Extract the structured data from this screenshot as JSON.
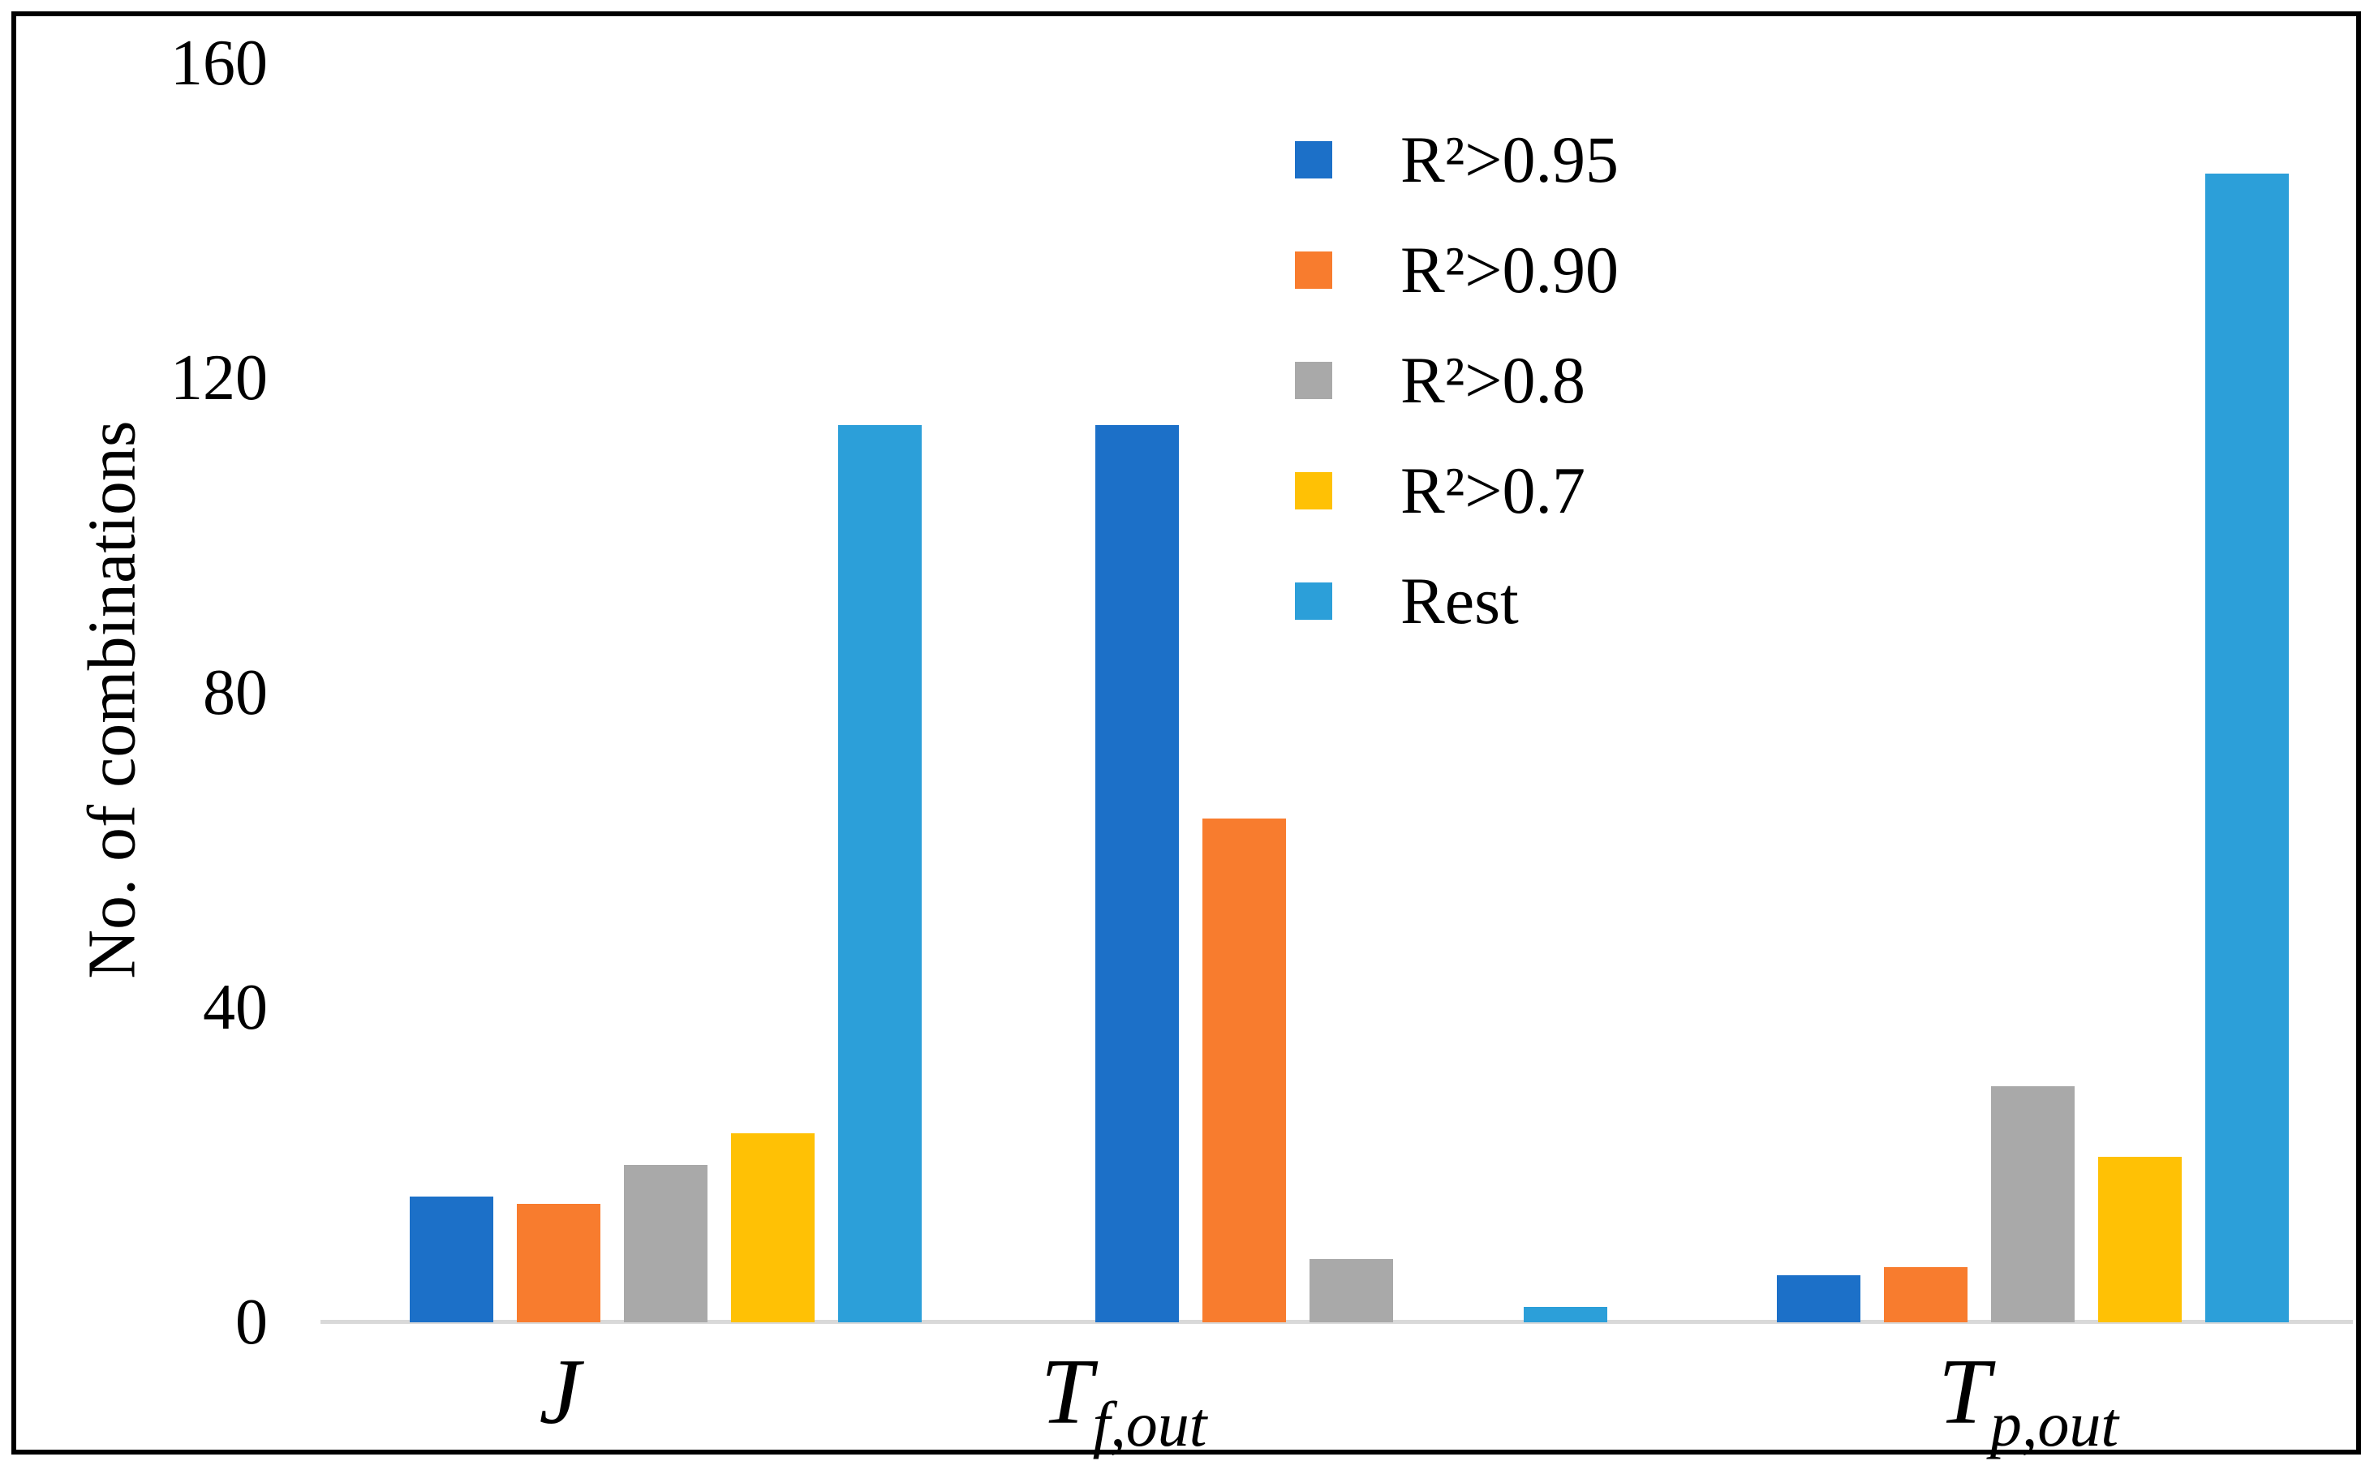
{
  "colors": {
    "axis_line": "#D9D9D9",
    "frame_border": "#000000",
    "text": "#000000"
  },
  "chart_data": {
    "type": "bar",
    "title": "",
    "xlabel": "",
    "ylabel": "No. of combinations",
    "ylim": [
      0,
      160
    ],
    "yticks": [
      0,
      40,
      80,
      120,
      160
    ],
    "grid": false,
    "legend_position": "upper right inside plot",
    "categories": [
      {
        "id": "j",
        "label": "J",
        "sub": ""
      },
      {
        "id": "tf-out",
        "label": "T",
        "sub": "f,out"
      },
      {
        "id": "tp-out",
        "label": "T",
        "sub": "p,out"
      }
    ],
    "series": [
      {
        "id": "r2-095",
        "name": "R²>0.95",
        "color": "#1C70C8",
        "values": [
          16,
          114,
          6
        ]
      },
      {
        "id": "r2-090",
        "name": "R²>0.90",
        "color": "#F87C2E",
        "values": [
          15,
          64,
          7
        ]
      },
      {
        "id": "r2-08",
        "name": "R²>0.8",
        "color": "#A9A9A9",
        "values": [
          20,
          8,
          30
        ]
      },
      {
        "id": "r2-07",
        "name": "R²>0.7",
        "color": "#FFC105",
        "values": [
          24,
          0,
          21
        ]
      },
      {
        "id": "rest",
        "name": "Rest",
        "color": "#2C9FD9",
        "values": [
          114,
          2,
          146
        ]
      }
    ]
  }
}
